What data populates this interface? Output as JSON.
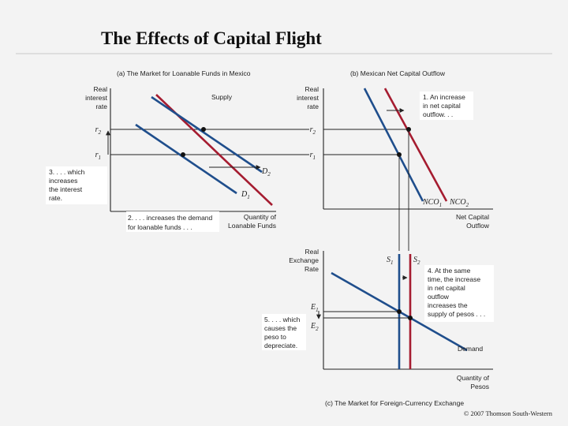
{
  "title": "The Effects of Capital Flight",
  "panel_a": {
    "caption": "(a) The Market for Loanable Funds in Mexico",
    "y_axis": [
      "Real",
      "interest",
      "rate"
    ],
    "supply_label": "Supply",
    "r2": "r",
    "r2_sub": "2",
    "r1": "r",
    "r1_sub": "1",
    "d2": "D",
    "d2_sub": "2",
    "d1": "D",
    "d1_sub": "1",
    "x_axis": [
      "Quantity of",
      "Loanable Funds"
    ],
    "note_demand": [
      "2. . . . increases the demand",
      "for loanable funds . . ."
    ],
    "note_interest": [
      "3. . . . which",
      "increases",
      "the interest",
      "rate."
    ]
  },
  "panel_b": {
    "caption": "(b) Mexican Net Capital Outflow",
    "y_axis": [
      "Real",
      "interest",
      "rate"
    ],
    "r2": "r",
    "r2_sub": "2",
    "r1": "r",
    "r1_sub": "1",
    "nco1": "NCO",
    "nco1_sub": "1",
    "nco2": "NCO",
    "nco2_sub": "2",
    "x_axis": [
      "Net Capital",
      "Outflow"
    ],
    "note_increase": [
      "1. An increase",
      "in net capital",
      "outflow. . ."
    ]
  },
  "panel_c": {
    "caption": "(c) The Market for Foreign-Currency Exchange",
    "y_axis": [
      "Real",
      "Exchange",
      "Rate"
    ],
    "s1": "S",
    "s1_sub": "1",
    "s2": "S",
    "s2_sub": "2",
    "e1": "E",
    "e1_sub": "1",
    "e2": "E",
    "e2_sub": "2",
    "demand_label": "Demand",
    "x_axis": [
      "Quantity of",
      "Pesos"
    ],
    "note_supply": [
      "4. At the same",
      "time, the increase",
      "in net capital",
      "outflow",
      "increases the",
      "supply of pesos . . ."
    ],
    "note_depreciate": [
      "5. . . . which",
      "causes the",
      "peso to",
      "depreciate."
    ]
  },
  "copyright": "© 2007 Thomson South-Western",
  "colors": {
    "red": "#a51c30",
    "blue": "#1f4e8c",
    "background": "#f3f3f3",
    "note_box": "#ffffff"
  }
}
